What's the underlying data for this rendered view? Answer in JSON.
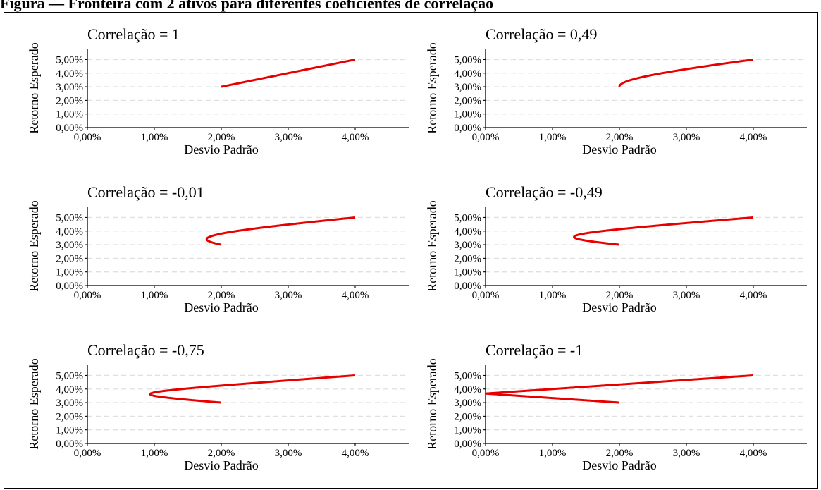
{
  "figure_title": "Figura — Fronteira com 2 ativos para diferentes coeficientes de correlação",
  "colors": {
    "line": "#e80000",
    "grid": "#e0e0e0",
    "axis": "#000000"
  },
  "chart_data": [
    {
      "type": "line",
      "title": "Correlação = 1",
      "correlation": 1,
      "xlabel": "Desvio Padrão",
      "ylabel": "Retorno Esperado",
      "xlim": [
        0,
        0.048
      ],
      "ylim": [
        0,
        0.058
      ],
      "x_ticks": [
        "0,00%",
        "1,00%",
        "2,00%",
        "3,00%",
        "4,00%"
      ],
      "y_ticks": [
        "0,00%",
        "1,00%",
        "2,00%",
        "3,00%",
        "4,00%",
        "5,00%"
      ],
      "asset_a": {
        "sd": 0.02,
        "ret": 0.03
      },
      "asset_b": {
        "sd": 0.04,
        "ret": 0.05
      },
      "grid": "horizontal-dashed"
    },
    {
      "type": "line",
      "title": "Correlação = 0,49",
      "correlation": 0.49,
      "xlabel": "Desvio Padrão",
      "ylabel": "Retorno Esperado",
      "xlim": [
        0,
        0.048
      ],
      "ylim": [
        0,
        0.058
      ],
      "x_ticks": [
        "0,00%",
        "1,00%",
        "2,00%",
        "3,00%",
        "4,00%"
      ],
      "y_ticks": [
        "0,00%",
        "1,00%",
        "2,00%",
        "3,00%",
        "4,00%",
        "5,00%"
      ],
      "asset_a": {
        "sd": 0.02,
        "ret": 0.03
      },
      "asset_b": {
        "sd": 0.04,
        "ret": 0.05
      },
      "grid": "horizontal-dashed"
    },
    {
      "type": "line",
      "title": "Correlação = -0,01",
      "correlation": -0.01,
      "xlabel": "Desvio Padrão",
      "ylabel": "Retorno Esperado",
      "xlim": [
        0,
        0.048
      ],
      "ylim": [
        0,
        0.058
      ],
      "x_ticks": [
        "0,00%",
        "1,00%",
        "2,00%",
        "3,00%",
        "4,00%"
      ],
      "y_ticks": [
        "0,00%",
        "1,00%",
        "2,00%",
        "3,00%",
        "4,00%",
        "5,00%"
      ],
      "asset_a": {
        "sd": 0.02,
        "ret": 0.03
      },
      "asset_b": {
        "sd": 0.04,
        "ret": 0.05
      },
      "grid": "horizontal-dashed"
    },
    {
      "type": "line",
      "title": "Correlação = -0,49",
      "correlation": -0.49,
      "xlabel": "Desvio Padrão",
      "ylabel": "Retorno Esperado",
      "xlim": [
        0,
        0.048
      ],
      "ylim": [
        0,
        0.058
      ],
      "x_ticks": [
        "0,00%",
        "1,00%",
        "2,00%",
        "3,00%",
        "4,00%"
      ],
      "y_ticks": [
        "0,00%",
        "1,00%",
        "2,00%",
        "3,00%",
        "4,00%",
        "5,00%"
      ],
      "asset_a": {
        "sd": 0.02,
        "ret": 0.03
      },
      "asset_b": {
        "sd": 0.04,
        "ret": 0.05
      },
      "grid": "horizontal-dashed"
    },
    {
      "type": "line",
      "title": "Correlação = -0,75",
      "correlation": -0.75,
      "xlabel": "Desvio Padrão",
      "ylabel": "Retorno Esperado",
      "xlim": [
        0,
        0.048
      ],
      "ylim": [
        0,
        0.058
      ],
      "x_ticks": [
        "0,00%",
        "1,00%",
        "2,00%",
        "3,00%",
        "4,00%"
      ],
      "y_ticks": [
        "0,00%",
        "1,00%",
        "2,00%",
        "3,00%",
        "4,00%",
        "5,00%"
      ],
      "asset_a": {
        "sd": 0.02,
        "ret": 0.03
      },
      "asset_b": {
        "sd": 0.04,
        "ret": 0.05
      },
      "grid": "horizontal-dashed"
    },
    {
      "type": "line",
      "title": "Correlação = -1",
      "correlation": -1,
      "xlabel": "Desvio Padrão",
      "ylabel": "Retorno Esperado",
      "xlim": [
        0,
        0.048
      ],
      "ylim": [
        0,
        0.058
      ],
      "x_ticks": [
        "0,00%",
        "1,00%",
        "2,00%",
        "3,00%",
        "4,00%"
      ],
      "y_ticks": [
        "0,00%",
        "1,00%",
        "2,00%",
        "3,00%",
        "4,00%",
        "5,00%"
      ],
      "asset_a": {
        "sd": 0.02,
        "ret": 0.03
      },
      "asset_b": {
        "sd": 0.04,
        "ret": 0.05
      },
      "grid": "horizontal-dashed"
    }
  ]
}
